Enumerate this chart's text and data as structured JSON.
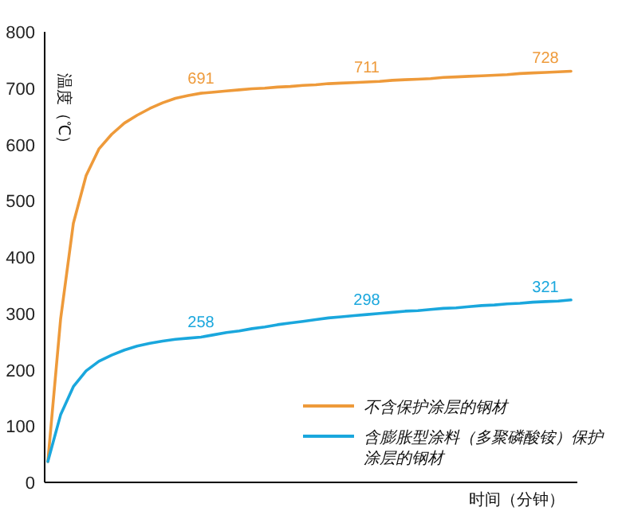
{
  "chart_data": {
    "type": "line",
    "xlabel": "时间（分钟）",
    "ylabel": "温度（℃）",
    "categories": [
      null,
      null,
      null,
      null,
      null,
      null,
      null,
      null,
      null,
      null,
      null,
      null,
      null,
      null,
      null,
      null,
      null,
      null,
      null,
      null,
      null,
      null,
      null,
      null,
      null,
      null,
      null,
      null,
      null,
      null,
      null,
      null,
      null,
      null,
      null,
      null,
      null,
      null,
      null,
      null,
      null,
      null
    ],
    "ylim": [
      0,
      800
    ],
    "yticks": [
      0,
      100,
      200,
      300,
      400,
      500,
      600,
      700,
      800
    ],
    "legend": "bottom right",
    "grid": false,
    "marker": "none",
    "line_style": "solid",
    "series": [
      {
        "name": "不含保护涂层的钢材",
        "color": "#ee9a3a",
        "values": [
          37,
          290,
          460,
          545,
          592,
          618,
          638,
          652,
          664,
          674,
          682,
          687,
          691,
          693,
          695,
          697,
          699,
          700,
          702,
          703,
          705,
          706,
          708,
          709,
          710,
          711,
          712,
          714,
          715,
          716,
          717,
          719,
          720,
          721,
          722,
          723,
          724,
          726,
          727,
          728,
          729,
          730
        ],
        "value_labels": [
          null,
          null,
          null,
          null,
          null,
          null,
          null,
          null,
          null,
          null,
          null,
          null,
          "691",
          null,
          null,
          null,
          null,
          null,
          null,
          null,
          null,
          null,
          null,
          null,
          null,
          "711",
          null,
          null,
          null,
          null,
          null,
          null,
          null,
          null,
          null,
          null,
          null,
          null,
          null,
          "728",
          null,
          null
        ]
      },
      {
        "name": "含膨胀型涂料（多聚磷酸铵）保护涂层的钢材",
        "color": "#1aa7dd",
        "values": [
          37,
          120,
          170,
          198,
          215,
          226,
          235,
          242,
          247,
          251,
          254,
          256,
          258,
          262,
          266,
          269,
          273,
          276,
          280,
          283,
          286,
          289,
          292,
          294,
          296,
          298,
          300,
          302,
          304,
          305,
          307,
          309,
          310,
          312,
          314,
          315,
          317,
          318,
          320,
          321,
          322,
          324
        ],
        "value_labels": [
          null,
          null,
          null,
          null,
          null,
          null,
          null,
          null,
          null,
          null,
          null,
          null,
          "258",
          null,
          null,
          null,
          null,
          null,
          null,
          null,
          null,
          null,
          null,
          null,
          null,
          "298",
          null,
          null,
          null,
          null,
          null,
          null,
          null,
          null,
          null,
          null,
          null,
          null,
          null,
          "321",
          null,
          null
        ]
      }
    ]
  }
}
